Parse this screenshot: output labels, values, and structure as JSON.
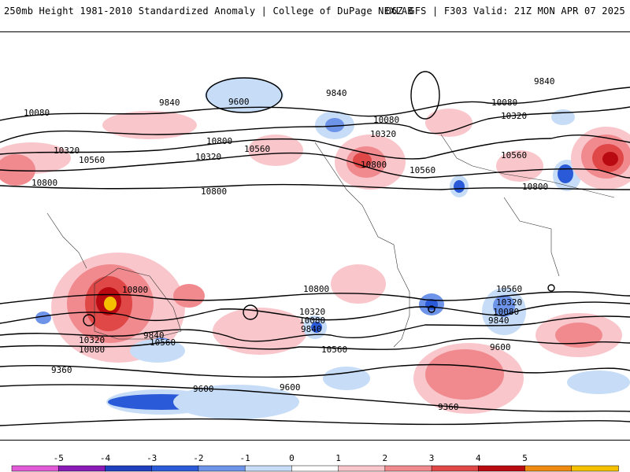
{
  "header": {
    "title": "250mb Height 1981-2010 Standardized Anomaly | College of DuPage NEXLAB",
    "run_info": "06Z GFS | F303 Valid: 21Z MON APR 07 2025"
  },
  "colorbar": {
    "ticks": [
      "-5",
      "-4",
      "-3",
      "-2",
      "-1",
      "0",
      "1",
      "2",
      "3",
      "4",
      "5"
    ],
    "colors": [
      "#e05ad6",
      "#8a1ab5",
      "#1f3fbf",
      "#2a5ad8",
      "#6d94e8",
      "#c7ddf7",
      "#ffffff",
      "#f9c6cb",
      "#f08a8e",
      "#e04848",
      "#b80a10",
      "#ee8a10",
      "#f5c000"
    ]
  },
  "contour_labels": [
    {
      "id": "l9840a",
      "text": "9840"
    },
    {
      "id": "l9600a",
      "text": "9600"
    },
    {
      "id": "l9840b",
      "text": "9840"
    },
    {
      "id": "l9840c",
      "text": "9840"
    },
    {
      "id": "l10080a",
      "text": "10080"
    },
    {
      "id": "l10080b",
      "text": "10080"
    },
    {
      "id": "l10080c",
      "text": "10080"
    },
    {
      "id": "l10320a",
      "text": "10320"
    },
    {
      "id": "l10320b",
      "text": "10320"
    },
    {
      "id": "l10320c",
      "text": "10320"
    },
    {
      "id": "l10320d",
      "text": "10320"
    },
    {
      "id": "l10560a",
      "text": "10560"
    },
    {
      "id": "l10560b",
      "text": "10560"
    },
    {
      "id": "l10560c",
      "text": "10560"
    },
    {
      "id": "l10560d",
      "text": "10560"
    },
    {
      "id": "l10800a",
      "text": "10800"
    },
    {
      "id": "l10800b",
      "text": "10800"
    },
    {
      "id": "l10800c",
      "text": "10800"
    },
    {
      "id": "l10800d",
      "text": "10800"
    },
    {
      "id": "l10800e",
      "text": "10800"
    },
    {
      "id": "l10800f",
      "text": "10800"
    },
    {
      "id": "l10800g",
      "text": "10800"
    },
    {
      "id": "l10560e",
      "text": "10560"
    },
    {
      "id": "l10320e",
      "text": "10320"
    },
    {
      "id": "l10080d",
      "text": "10080"
    },
    {
      "id": "l9840d",
      "text": "9840"
    },
    {
      "id": "l10560f",
      "text": "10560"
    },
    {
      "id": "l10320f",
      "text": "10320"
    },
    {
      "id": "l10080e",
      "text": "10080"
    },
    {
      "id": "l9840e",
      "text": "9840"
    },
    {
      "id": "l10560g",
      "text": "10560"
    },
    {
      "id": "l10320g",
      "text": "10320"
    },
    {
      "id": "l10080f",
      "text": "10080"
    },
    {
      "id": "l9840f",
      "text": "9840"
    },
    {
      "id": "l9600b",
      "text": "9600"
    },
    {
      "id": "l9360a",
      "text": "9360"
    },
    {
      "id": "l9600c",
      "text": "9600"
    },
    {
      "id": "l9600d",
      "text": "9600"
    },
    {
      "id": "l9360b",
      "text": "9360"
    }
  ]
}
